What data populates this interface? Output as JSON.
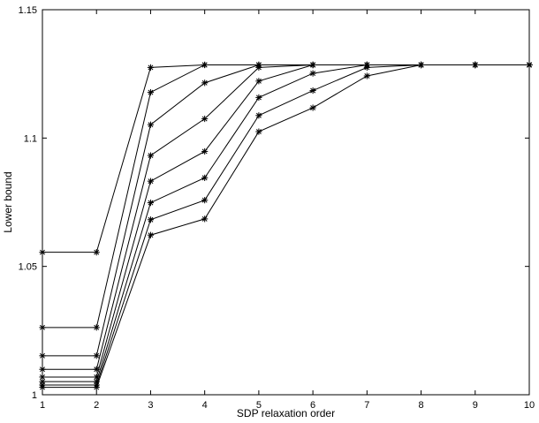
{
  "chart_data": {
    "type": "line",
    "title": "",
    "xlabel": "SDP relaxation order",
    "ylabel": "Lower bound",
    "xlim": [
      1,
      10
    ],
    "ylim": [
      1.0,
      1.15
    ],
    "xticks": [
      1,
      2,
      3,
      4,
      5,
      6,
      7,
      8,
      9,
      10
    ],
    "yticks": [
      1,
      1.05,
      1.1,
      1.15
    ],
    "xtick_labels": [
      "1",
      "2",
      "3",
      "4",
      "5",
      "6",
      "7",
      "8",
      "9",
      "10"
    ],
    "ytick_labels": [
      "1",
      "1.05",
      "1.1",
      "1.15"
    ],
    "grid": false,
    "marker": "asterisk",
    "line_color": "#000000",
    "x": [
      1,
      2,
      3,
      4,
      5,
      6,
      7,
      8,
      9,
      10
    ],
    "series": [
      {
        "values": [
          1.0555,
          1.0555,
          1.1275,
          1.1285,
          1.1285,
          1.1285,
          1.1285,
          1.1285,
          1.1285,
          1.1285
        ]
      },
      {
        "values": [
          1.0262,
          1.0262,
          1.1178,
          1.1285,
          1.1285,
          1.1285,
          1.1285,
          1.1285,
          1.1285,
          1.1285
        ]
      },
      {
        "values": [
          1.0152,
          1.0152,
          1.1052,
          1.1215,
          1.1285,
          1.1285,
          1.1285,
          1.1285,
          1.1285,
          1.1285
        ]
      },
      {
        "values": [
          1.0099,
          1.0099,
          1.0932,
          1.1075,
          1.1275,
          1.1285,
          1.1285,
          1.1285,
          1.1285,
          1.1285
        ]
      },
      {
        "values": [
          1.0069,
          1.0069,
          1.0832,
          1.0948,
          1.1222,
          1.1285,
          1.1285,
          1.1285,
          1.1285,
          1.1285
        ]
      },
      {
        "values": [
          1.0051,
          1.0051,
          1.0748,
          1.0845,
          1.1158,
          1.1252,
          1.1285,
          1.1285,
          1.1285,
          1.1285
        ]
      },
      {
        "values": [
          1.0038,
          1.0038,
          1.0682,
          1.0758,
          1.1088,
          1.1185,
          1.1275,
          1.1285,
          1.1285,
          1.1285
        ]
      },
      {
        "values": [
          1.0029,
          1.0029,
          1.0622,
          1.0685,
          1.1025,
          1.1118,
          1.1242,
          1.1285,
          1.1285,
          1.1285
        ]
      }
    ]
  }
}
